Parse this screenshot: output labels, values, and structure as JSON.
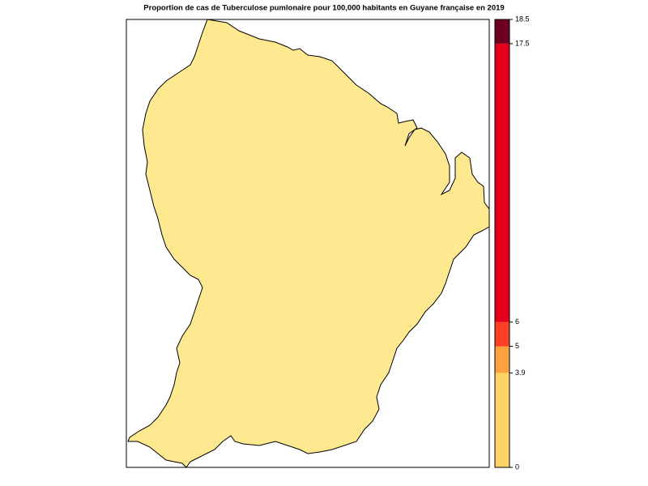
{
  "map_data": {
    "title": "Proportion de cas de Tuberculose pumlonaire pour 100,000 habitants en Guyane française en 2019",
    "region_color": "#FEE990",
    "legend": {
      "breaks": [
        0,
        3.9,
        5,
        6,
        17.5,
        18.5
      ],
      "colors": [
        "#FED466",
        "#FEA13F",
        "#FC3F27",
        "#E2001A",
        "#6E0022"
      ]
    }
  }
}
